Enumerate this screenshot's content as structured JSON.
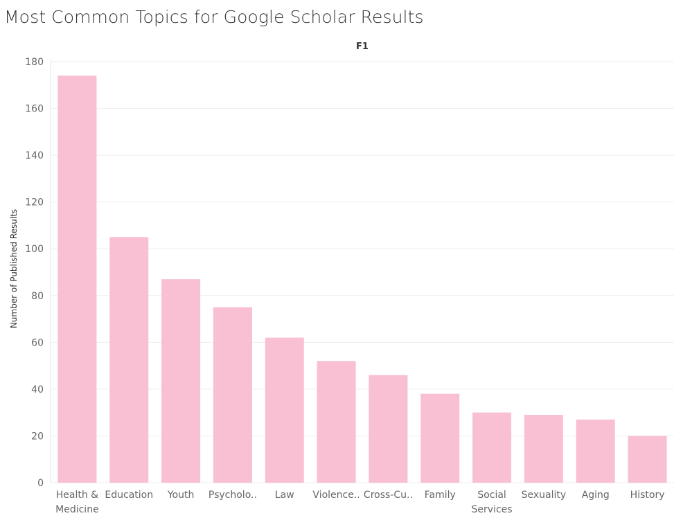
{
  "page_title": "Most Common Topics for Google Scholar Results",
  "chart_data": {
    "type": "bar",
    "title": "Most Common Topics for Google Scholar Results",
    "header": "F1",
    "xlabel": "",
    "ylabel": "Number of Published Results",
    "ylim": [
      0,
      180
    ],
    "yticks": [
      0,
      20,
      40,
      60,
      80,
      100,
      120,
      140,
      160,
      180
    ],
    "grid": true,
    "bar_color": "#f9bfd3",
    "categories": [
      "Health & Medicine",
      "Education",
      "Youth",
      "Psycholo..",
      "Law",
      "Violence..",
      "Cross-Cu..",
      "Family",
      "Social Services",
      "Sexuality",
      "Aging",
      "History"
    ],
    "values": [
      174,
      105,
      87,
      75,
      62,
      52,
      46,
      38,
      30,
      29,
      27,
      20
    ]
  }
}
